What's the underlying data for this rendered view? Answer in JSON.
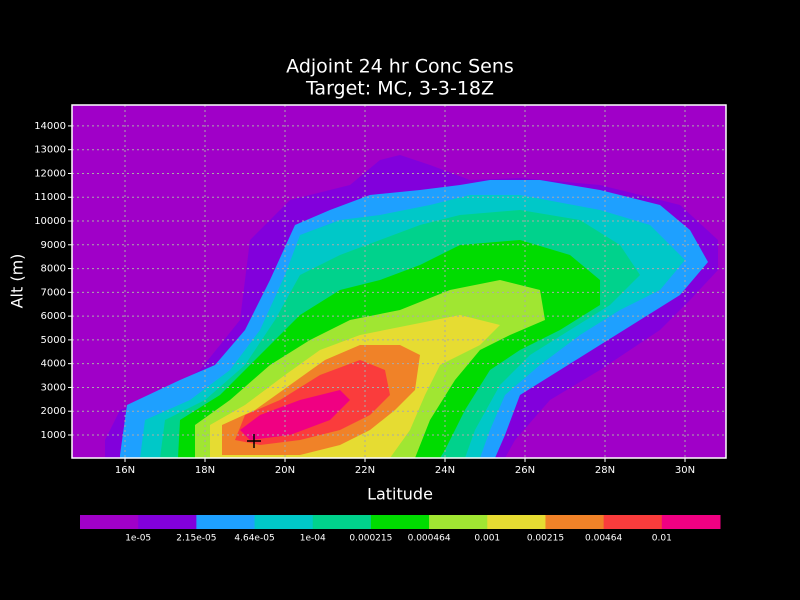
{
  "chart_data": {
    "type": "contour",
    "title": "Adjoint 24 hr Conc Sens",
    "subtitle": "Target: MC, 3-3-18Z",
    "x_label": "Latitude",
    "y_label": "Alt (m)",
    "xlim": [
      14.675,
      31.025
    ],
    "ylim": [
      32,
      14880
    ],
    "xticks": [
      {
        "value": 16,
        "label": "16N"
      },
      {
        "value": 18,
        "label": "18N"
      },
      {
        "value": 20,
        "label": "20N"
      },
      {
        "value": 22,
        "label": "22N"
      },
      {
        "value": 24,
        "label": "24N"
      },
      {
        "value": 26,
        "label": "26N"
      },
      {
        "value": 28,
        "label": "28N"
      },
      {
        "value": 30,
        "label": "30N"
      }
    ],
    "yticks": [
      1000,
      2000,
      3000,
      4000,
      5000,
      6000,
      7000,
      8000,
      9000,
      10000,
      11000,
      12000,
      13000,
      14000
    ],
    "grid": true,
    "levels": [
      {
        "value": 1e-05,
        "label": "1e-05"
      },
      {
        "value": 2.15e-05,
        "label": "2.15e-05"
      },
      {
        "value": 4.64e-05,
        "label": "4.64e-05"
      },
      {
        "value": 0.0001,
        "label": "1e-04"
      },
      {
        "value": 0.000215,
        "label": "0.000215"
      },
      {
        "value": 0.000464,
        "label": "0.000464"
      },
      {
        "value": 0.001,
        "label": "0.001"
      },
      {
        "value": 0.00215,
        "label": "0.00215"
      },
      {
        "value": 0.00464,
        "label": "0.00464"
      },
      {
        "value": 0.01,
        "label": "0.01"
      }
    ],
    "colors": [
      "#a000c8",
      "#8200dc",
      "#1ea0ff",
      "#00c8c8",
      "#00d28c",
      "#00dc00",
      "#a0e632",
      "#e6dc32",
      "#f08228",
      "#fa3c3c",
      "#f00082"
    ],
    "marker": {
      "x": 19.225,
      "y": 747
    }
  }
}
